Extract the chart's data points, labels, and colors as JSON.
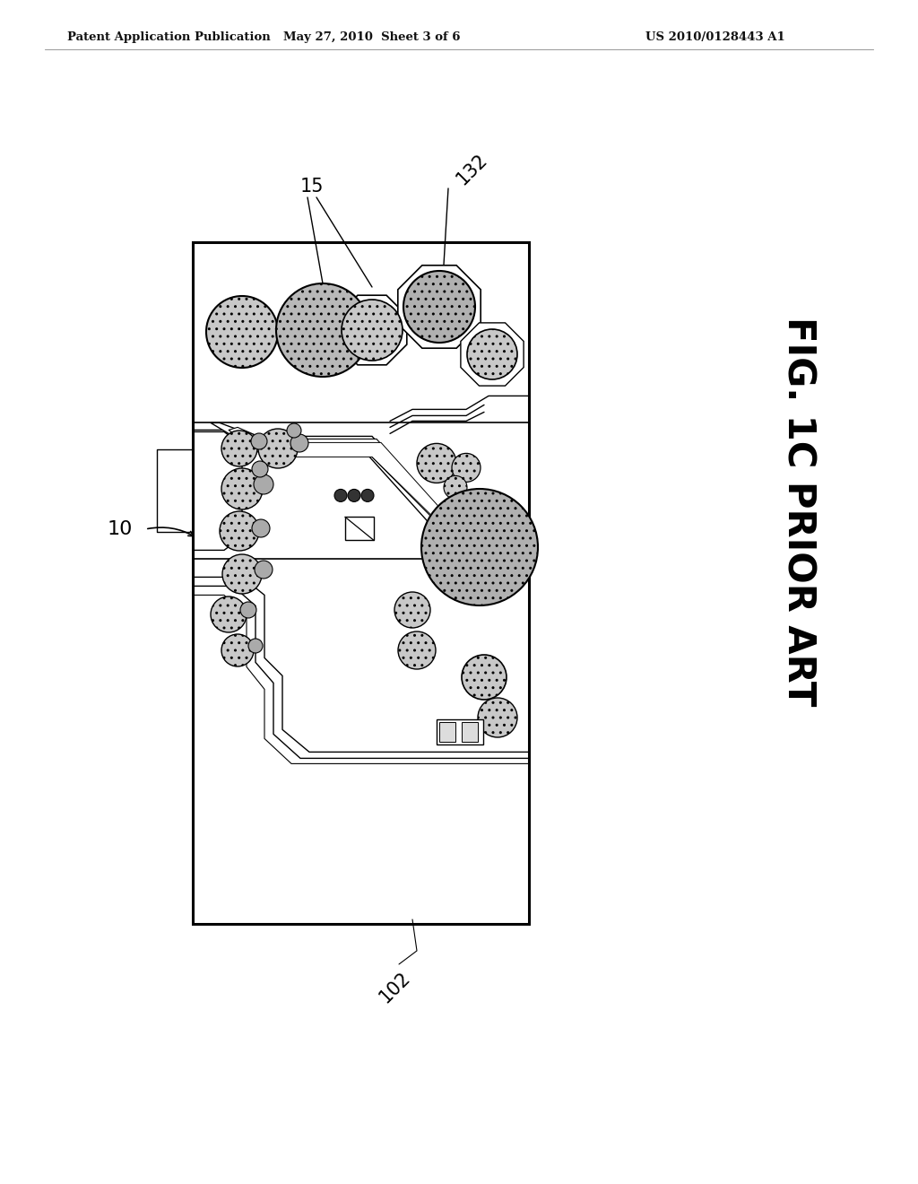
{
  "bg_color": "#ffffff",
  "header_left": "Patent Application Publication",
  "header_mid": "May 27, 2010  Sheet 3 of 6",
  "header_right": "US 2010/0128443 A1",
  "fig_label": "FIG. 1C PRIOR ART",
  "label_10": "10",
  "label_15": "15",
  "label_132": "132",
  "label_102": "102",
  "line_color": "#000000",
  "gray_fill": "#c8c8c8",
  "dark_gray": "#b0b0b0"
}
